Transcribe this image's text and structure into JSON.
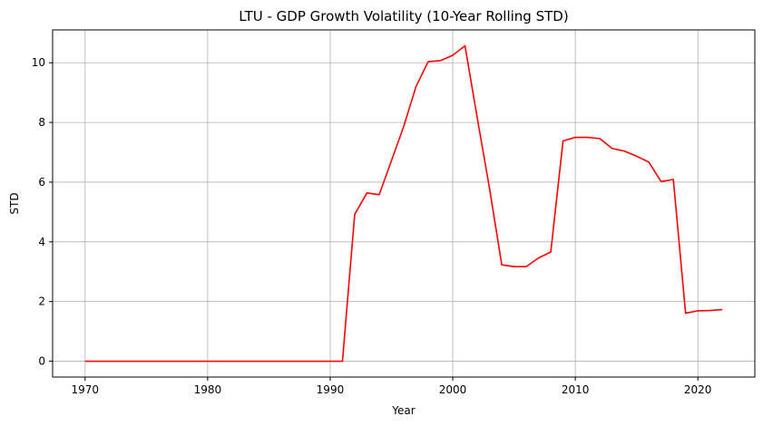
{
  "chart_data": {
    "type": "line",
    "title": "LTU - GDP Growth Volatility (10-Year Rolling STD)",
    "xlabel": "Year",
    "ylabel": "STD",
    "xlim": [
      1967.35,
      2024.65
    ],
    "ylim": [
      -0.53,
      11.1
    ],
    "xticks": [
      1970,
      1980,
      1990,
      2000,
      2010,
      2020
    ],
    "yticks": [
      0,
      2,
      4,
      6,
      8,
      10
    ],
    "grid": true,
    "line_color": "#ff0000",
    "series": [
      {
        "x": [
          1970,
          1971,
          1972,
          1973,
          1974,
          1975,
          1976,
          1977,
          1978,
          1979,
          1980,
          1981,
          1982,
          1983,
          1984,
          1985,
          1986,
          1987,
          1988,
          1989,
          1990,
          1991,
          1992,
          1993,
          1994,
          1995,
          1996,
          1997,
          1998,
          1999,
          2000,
          2001,
          2002,
          2003,
          2004,
          2005,
          2006,
          2007,
          2008,
          2009,
          2010,
          2011,
          2012,
          2013,
          2014,
          2015,
          2016,
          2017,
          2018,
          2019,
          2020,
          2021,
          2022
        ],
        "y": [
          0,
          0,
          0,
          0,
          0,
          0,
          0,
          0,
          0,
          0,
          0,
          0,
          0,
          0,
          0,
          0,
          0,
          0,
          0,
          0,
          0,
          0,
          4.92,
          5.64,
          5.58,
          6.72,
          7.87,
          9.2,
          10.04,
          10.07,
          10.25,
          10.57,
          8.15,
          5.79,
          3.23,
          3.17,
          3.17,
          3.46,
          3.66,
          7.38,
          7.5,
          7.5,
          7.46,
          7.13,
          7.04,
          6.87,
          6.67,
          6.02,
          6.09,
          1.61,
          1.69,
          1.7,
          1.73
        ]
      }
    ]
  }
}
